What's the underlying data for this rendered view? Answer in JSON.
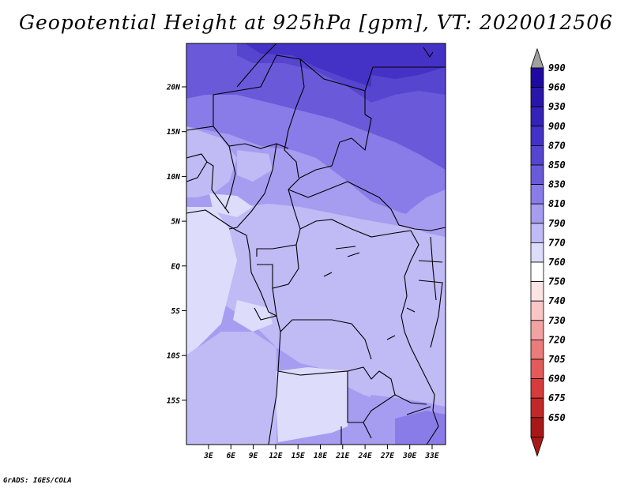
{
  "title": "Geopotential Height at 925hPa [gpm], VT: 2020012506",
  "credit": "GrADS: IGES/COLA",
  "map": {
    "y_ticks": [
      "20N",
      "15N",
      "10N",
      "5N",
      "EQ",
      "5S",
      "10S",
      "15S"
    ],
    "x_ticks": [
      "3E",
      "6E",
      "9E",
      "12E",
      "15E",
      "18E",
      "21E",
      "24E",
      "27E",
      "30E",
      "33E"
    ]
  },
  "colorbar": {
    "levels": [
      {
        "label": "990",
        "color": "#1e0aa0"
      },
      {
        "label": "960",
        "color": "#2a17aa"
      },
      {
        "label": "930",
        "color": "#3522b8"
      },
      {
        "label": "900",
        "color": "#4432c6"
      },
      {
        "label": "870",
        "color": "#5645cf"
      },
      {
        "label": "850",
        "color": "#6a5ad9"
      },
      {
        "label": "830",
        "color": "#8a7ce8"
      },
      {
        "label": "810",
        "color": "#a69cf0"
      },
      {
        "label": "790",
        "color": "#c0baf5"
      },
      {
        "label": "770",
        "color": "#dddcfb"
      },
      {
        "label": "760",
        "color": "#ffffff"
      },
      {
        "label": "750",
        "color": "#fde4e4"
      },
      {
        "label": "740",
        "color": "#f8c6c6"
      },
      {
        "label": "730",
        "color": "#f2a2a2"
      },
      {
        "label": "720",
        "color": "#ea7c7c"
      },
      {
        "label": "705",
        "color": "#e25a5a"
      },
      {
        "label": "690",
        "color": "#d63c3c"
      },
      {
        "label": "675",
        "color": "#c22828"
      },
      {
        "label": "650",
        "color": "#a81818"
      }
    ],
    "top_triangle_color": "#a0a0a0",
    "bottom_triangle_color": "#a81818"
  }
}
